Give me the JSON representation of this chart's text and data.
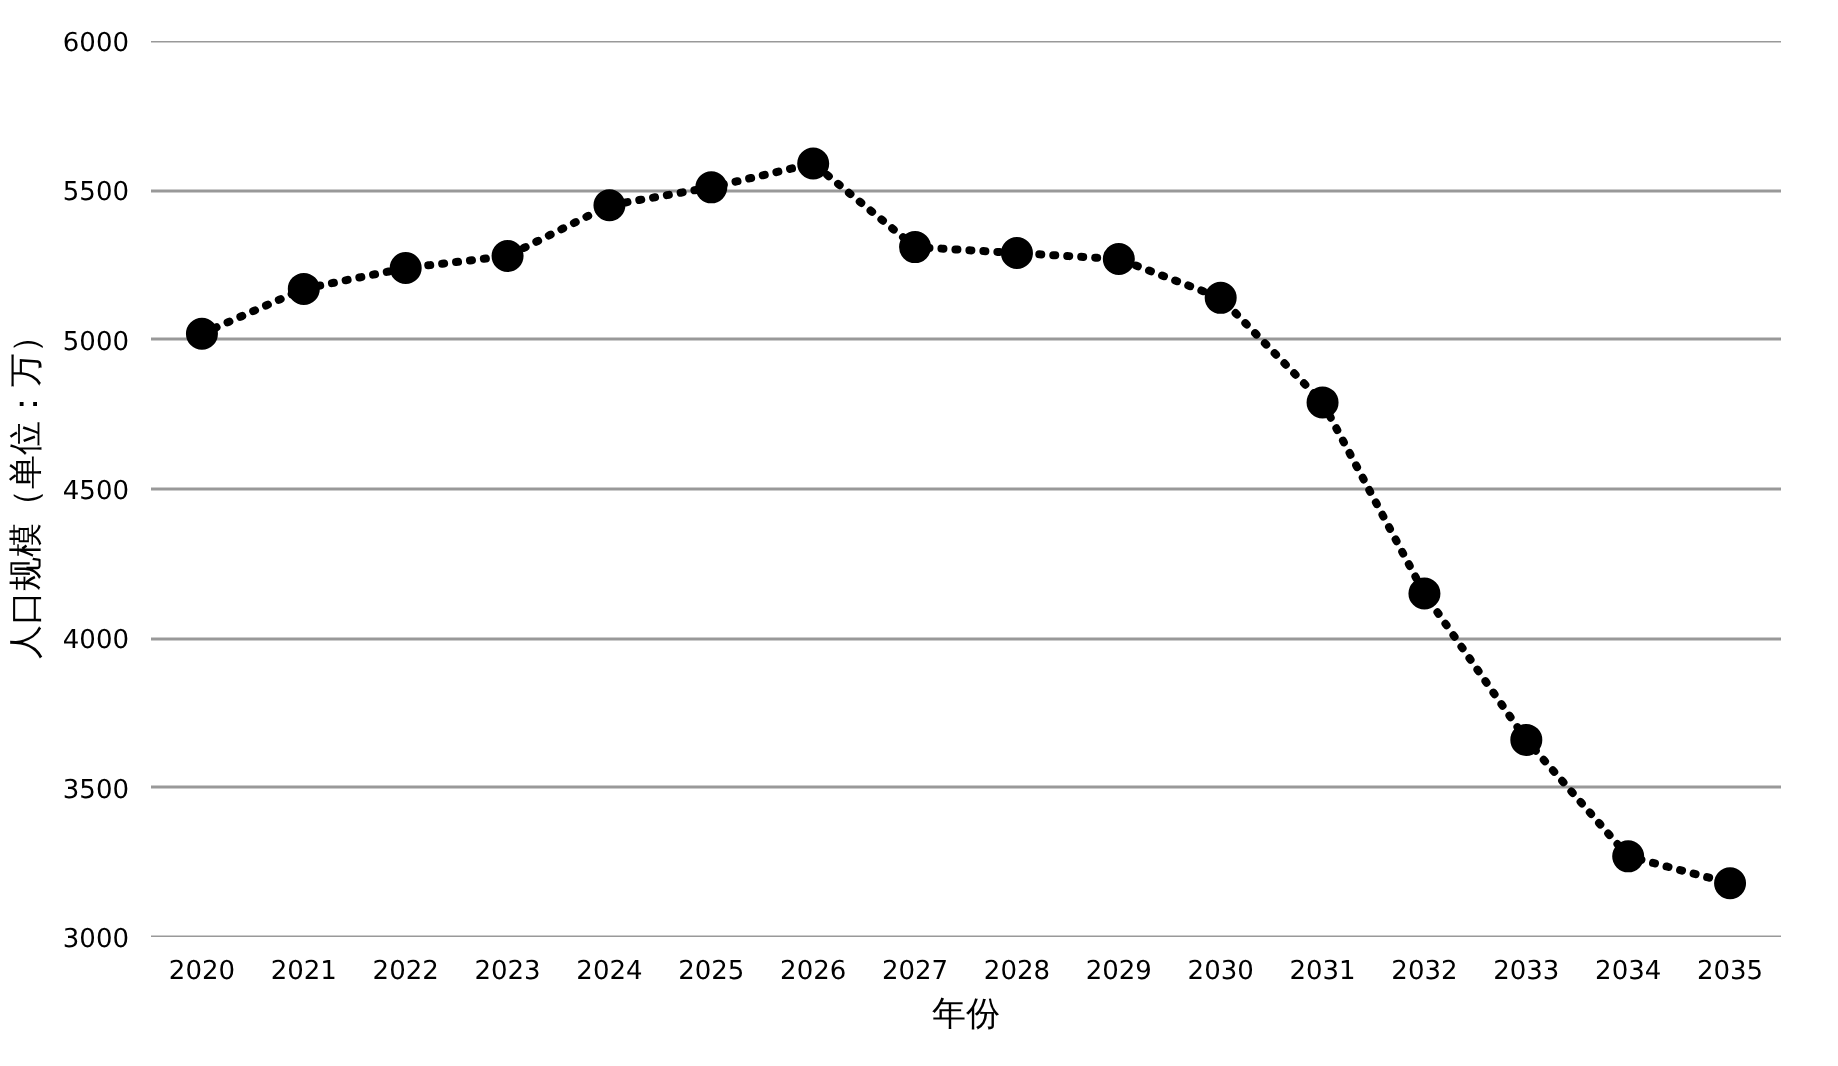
{
  "chart_data": {
    "type": "line",
    "xlabel": "年份",
    "ylabel": "人口规模（单位：万）",
    "categories": [
      "2020",
      "2021",
      "2022",
      "2023",
      "2024",
      "2025",
      "2026",
      "2027",
      "2028",
      "2029",
      "2030",
      "2031",
      "2032",
      "2033",
      "2034",
      "2035"
    ],
    "series": [
      {
        "color": "#000000",
        "values": [
          5020,
          5170,
          5240,
          5280,
          5450,
          5510,
          5590,
          5310,
          5290,
          5270,
          5140,
          4790,
          4150,
          3660,
          3270,
          3180
        ]
      }
    ],
    "ylim": [
      3000,
      6000
    ],
    "yticks": [
      3000,
      3500,
      4000,
      4500,
      5000,
      5500,
      6000
    ],
    "grid": "y",
    "marker": "circle",
    "line_style": "dotted"
  }
}
